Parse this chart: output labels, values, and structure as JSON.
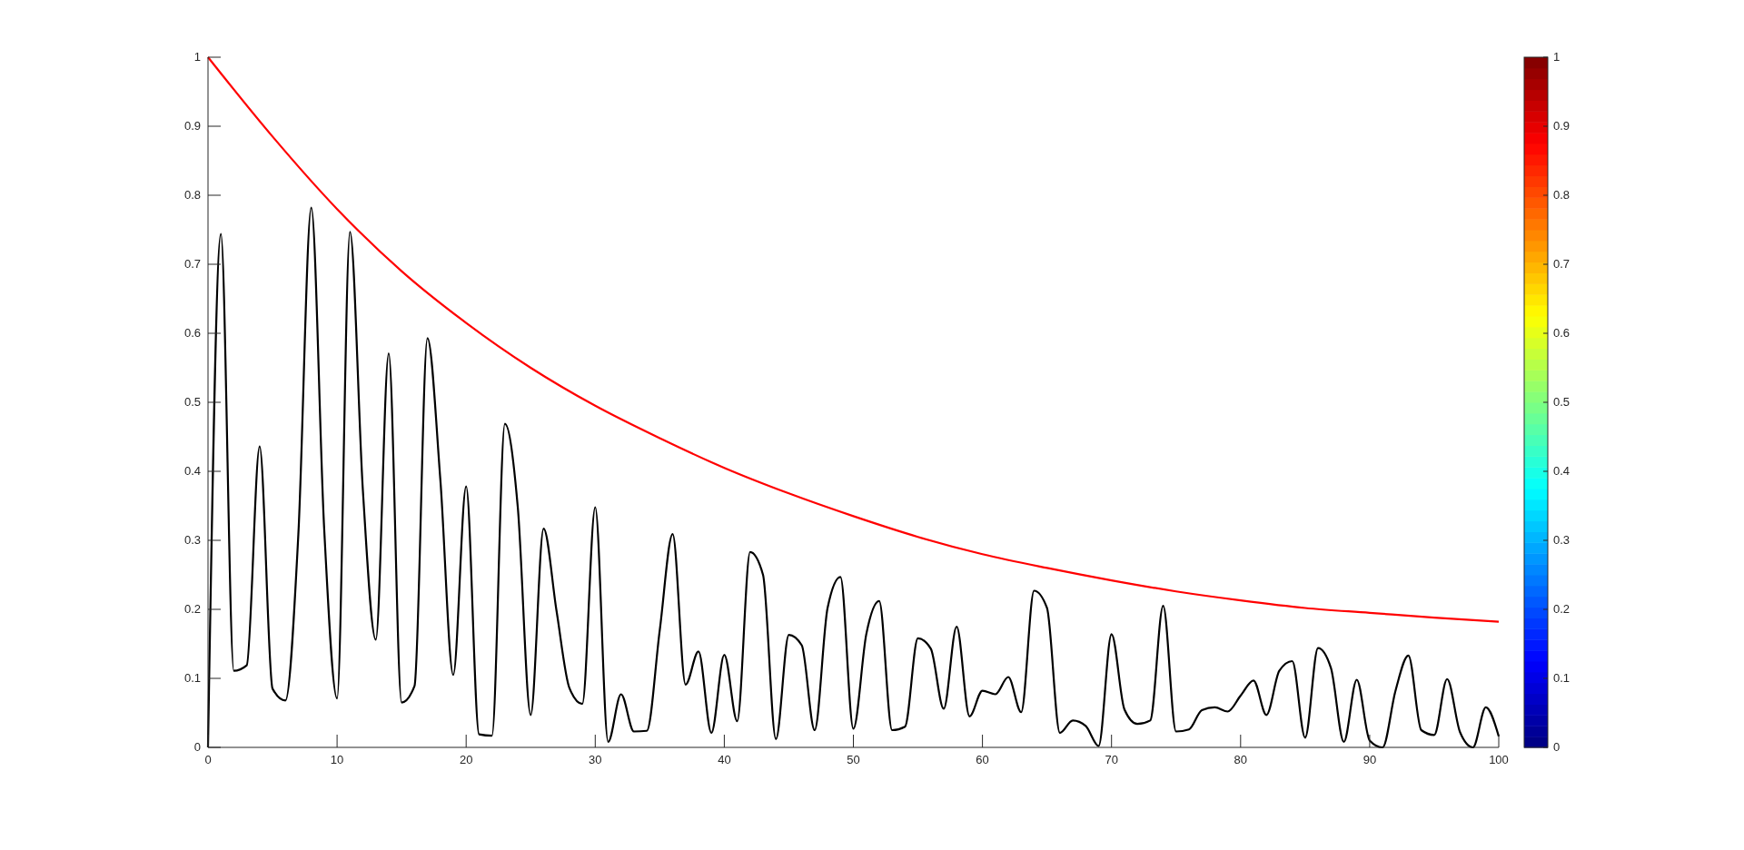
{
  "chart_data": {
    "type": "line",
    "xlim": [
      0,
      100
    ],
    "ylim": [
      0,
      1
    ],
    "xticks": [
      0,
      10,
      20,
      30,
      40,
      50,
      60,
      70,
      80,
      90,
      100
    ],
    "yticks": [
      0,
      0.1,
      0.2,
      0.3,
      0.4,
      0.5,
      0.6,
      0.7,
      0.8,
      0.9,
      1
    ],
    "clim": [
      0,
      1
    ],
    "cticks": [
      0,
      0.1,
      0.2,
      0.3,
      0.4,
      0.5,
      0.6,
      0.7,
      0.8,
      0.9,
      1
    ],
    "grid": false,
    "marker": "none",
    "line_style": "solid",
    "series": [
      {
        "color": "#ff0000",
        "x": [
          0,
          5,
          10,
          15,
          20,
          25,
          30,
          35,
          40,
          45,
          50,
          55,
          60,
          65,
          70,
          75,
          80,
          85,
          90,
          95,
          100
        ],
        "values": [
          1,
          0.885,
          0.78,
          0.69,
          0.615,
          0.55,
          0.495,
          0.448,
          0.405,
          0.368,
          0.335,
          0.305,
          0.28,
          0.26,
          0.242,
          0.226,
          0.213,
          0.202,
          0.195,
          0.188,
          0.182
        ]
      },
      {
        "color": "#000000",
        "x": [
          0,
          1,
          2,
          3,
          4,
          5,
          6,
          7,
          8,
          9,
          10,
          11,
          12,
          13,
          14,
          15,
          16,
          17,
          18,
          19,
          20,
          21,
          22,
          23,
          24,
          25,
          26,
          27,
          28,
          29,
          30,
          31,
          32,
          33,
          34,
          35,
          36,
          37,
          38,
          39,
          40,
          41,
          42,
          43,
          44,
          45,
          46,
          47,
          48,
          49,
          50,
          51,
          52,
          53,
          54,
          55,
          56,
          57,
          58,
          59,
          60,
          61,
          62,
          63,
          64,
          65,
          66,
          67,
          68,
          69,
          70,
          71,
          72,
          73,
          74,
          75,
          76,
          77,
          78,
          79,
          80,
          81,
          82,
          83,
          84,
          85,
          86,
          87,
          88,
          89,
          90,
          91,
          92,
          93,
          94,
          95,
          96,
          97,
          98,
          99,
          100
        ],
        "values": [
          0,
          0.744,
          0.111,
          0.119,
          0.436,
          0.085,
          0.068,
          0.309,
          0.782,
          0.317,
          0.071,
          0.747,
          0.372,
          0.156,
          0.571,
          0.065,
          0.089,
          0.593,
          0.388,
          0.105,
          0.378,
          0.019,
          0.017,
          0.469,
          0.348,
          0.047,
          0.317,
          0.198,
          0.086,
          0.063,
          0.348,
          0.008,
          0.077,
          0.023,
          0.024,
          0.17,
          0.309,
          0.091,
          0.139,
          0.021,
          0.134,
          0.038,
          0.283,
          0.25,
          0.012,
          0.163,
          0.148,
          0.025,
          0.202,
          0.247,
          0.027,
          0.164,
          0.212,
          0.025,
          0.03,
          0.158,
          0.143,
          0.056,
          0.175,
          0.045,
          0.082,
          0.077,
          0.102,
          0.051,
          0.227,
          0.202,
          0.021,
          0.039,
          0.031,
          0.002,
          0.164,
          0.055,
          0.034,
          0.039,
          0.205,
          0.023,
          0.026,
          0.054,
          0.058,
          0.052,
          0.075,
          0.097,
          0.047,
          0.111,
          0.125,
          0.014,
          0.144,
          0.115,
          0.008,
          0.098,
          0.01,
          0,
          0.082,
          0.133,
          0.025,
          0.018,
          0.099,
          0.022,
          0,
          0.058,
          0.016
        ]
      }
    ]
  }
}
